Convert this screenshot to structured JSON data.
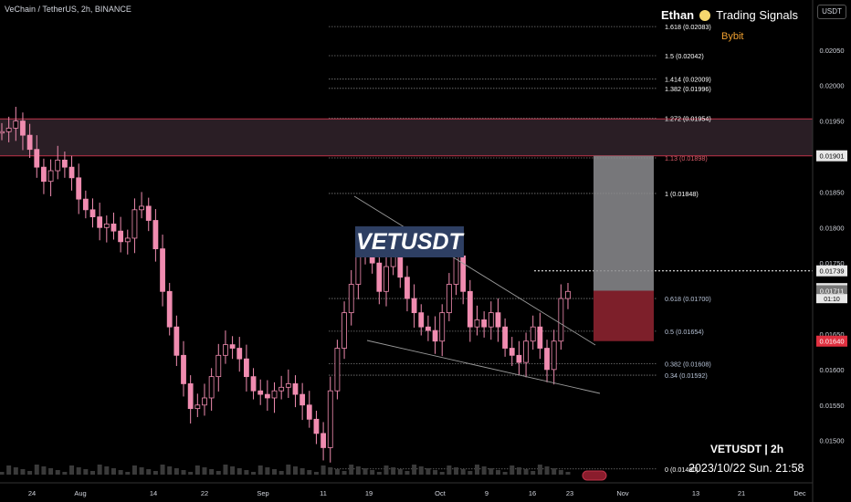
{
  "header": {
    "symbol_title": "VeChain / TetherUS, 2h, BINANCE",
    "brand": "Ethan",
    "brand_tag": "Trading Signals",
    "exchange": "Bybit",
    "currency": "USDT"
  },
  "overlay": {
    "big_label": "VETUSDT",
    "footer_pair": "VETUSDT | 2h",
    "footer_datetime": "2023/10/22 Sun. 21:58"
  },
  "colors": {
    "background": "#000000",
    "candle": "#f08cb0",
    "resistance_zone": "#2a1e25",
    "resistance_border": "#c0334a",
    "target_box": "#8c8c8f",
    "stop_box": "#7d1f2a",
    "fib_line": "#7a7a7a",
    "trend_line": "#9a9a9a",
    "accent_yellow": "#f5d76e",
    "accent_orange": "#f0a030",
    "price_badge_red": "#e03040"
  },
  "chart_data": {
    "type": "candlestick",
    "title": "VeChain / TetherUS, 2h, BINANCE",
    "ylim": [
      0.0146,
      0.021
    ],
    "y_ticks": [
      "0.02050",
      "0.02000",
      "0.01950",
      "0.01901",
      "0.01850",
      "0.01800",
      "0.01750",
      "0.01739",
      "0.01714",
      "0.01711",
      "0.01650",
      "0.01640",
      "0.01600",
      "0.01550",
      "0.01500"
    ],
    "x_ticks": [
      "24",
      "Aug",
      "14",
      "22",
      "Sep",
      "11",
      "19",
      "Oct",
      "9",
      "16",
      "23",
      "Nov",
      "13",
      "21",
      "Dec"
    ],
    "close_approx": [
      0.01935,
      0.0194,
      0.0195,
      0.0193,
      0.0191,
      0.01885,
      0.01865,
      0.0188,
      0.01895,
      0.01885,
      0.0187,
      0.0184,
      0.01825,
      0.01815,
      0.018,
      0.01805,
      0.01795,
      0.0178,
      0.01785,
      0.01825,
      0.0183,
      0.0181,
      0.0177,
      0.0171,
      0.0166,
      0.0162,
      0.0158,
      0.01545,
      0.0155,
      0.0156,
      0.0159,
      0.0162,
      0.01635,
      0.0163,
      0.01615,
      0.0159,
      0.0157,
      0.01565,
      0.0156,
      0.0157,
      0.01575,
      0.0158,
      0.01565,
      0.0155,
      0.0153,
      0.0151,
      0.0149,
      0.0157,
      0.0163,
      0.0168,
      0.0172,
      0.0176,
      0.0178,
      0.0175,
      0.0171,
      0.01745,
      0.0178,
      0.0173,
      0.017,
      0.0168,
      0.0166,
      0.01655,
      0.0164,
      0.0168,
      0.0172,
      0.0176,
      0.0171,
      0.0166,
      0.0167,
      0.0166,
      0.0168,
      0.0166,
      0.0163,
      0.0162,
      0.0161,
      0.0164,
      0.0166,
      0.0163,
      0.016,
      0.0164,
      0.017,
      0.0171
    ],
    "last_price": 0.01711,
    "last_price_label": "0.01711",
    "countdown": "01:10",
    "price_badge_current": "0.01714",
    "price_badge_1901": "0.01901",
    "price_badge_1739": "0.01739",
    "price_badge_1640": "0.01640",
    "fib_levels": [
      {
        "label": "1.618 (0.02083)",
        "price": 0.02083
      },
      {
        "label": "1.5 (0.02042)",
        "price": 0.02042
      },
      {
        "label": "1.414 (0.02009)",
        "price": 0.02009
      },
      {
        "label": "1.382 (0.01996)",
        "price": 0.01996
      },
      {
        "label": "1.272 (0.01954)",
        "price": 0.01954
      },
      {
        "label": "1.13 (0.01898)",
        "price": 0.01898
      },
      {
        "label": "1 (0.01848)",
        "price": 0.01848
      },
      {
        "label": "0.618 (0.01700)",
        "price": 0.017
      },
      {
        "label": "0.5 (0.01654)",
        "price": 0.01654
      },
      {
        "label": "0.382 (0.01608)",
        "price": 0.01608
      },
      {
        "label": "0.34 (0.01592)",
        "price": 0.01592
      },
      {
        "label": "0 (0.01460)",
        "price": 0.0146
      }
    ],
    "resistance_zone": [
      0.01901,
      0.01953
    ],
    "position": {
      "entry": 0.01711,
      "target": 0.01901,
      "stop": 0.0164
    }
  }
}
